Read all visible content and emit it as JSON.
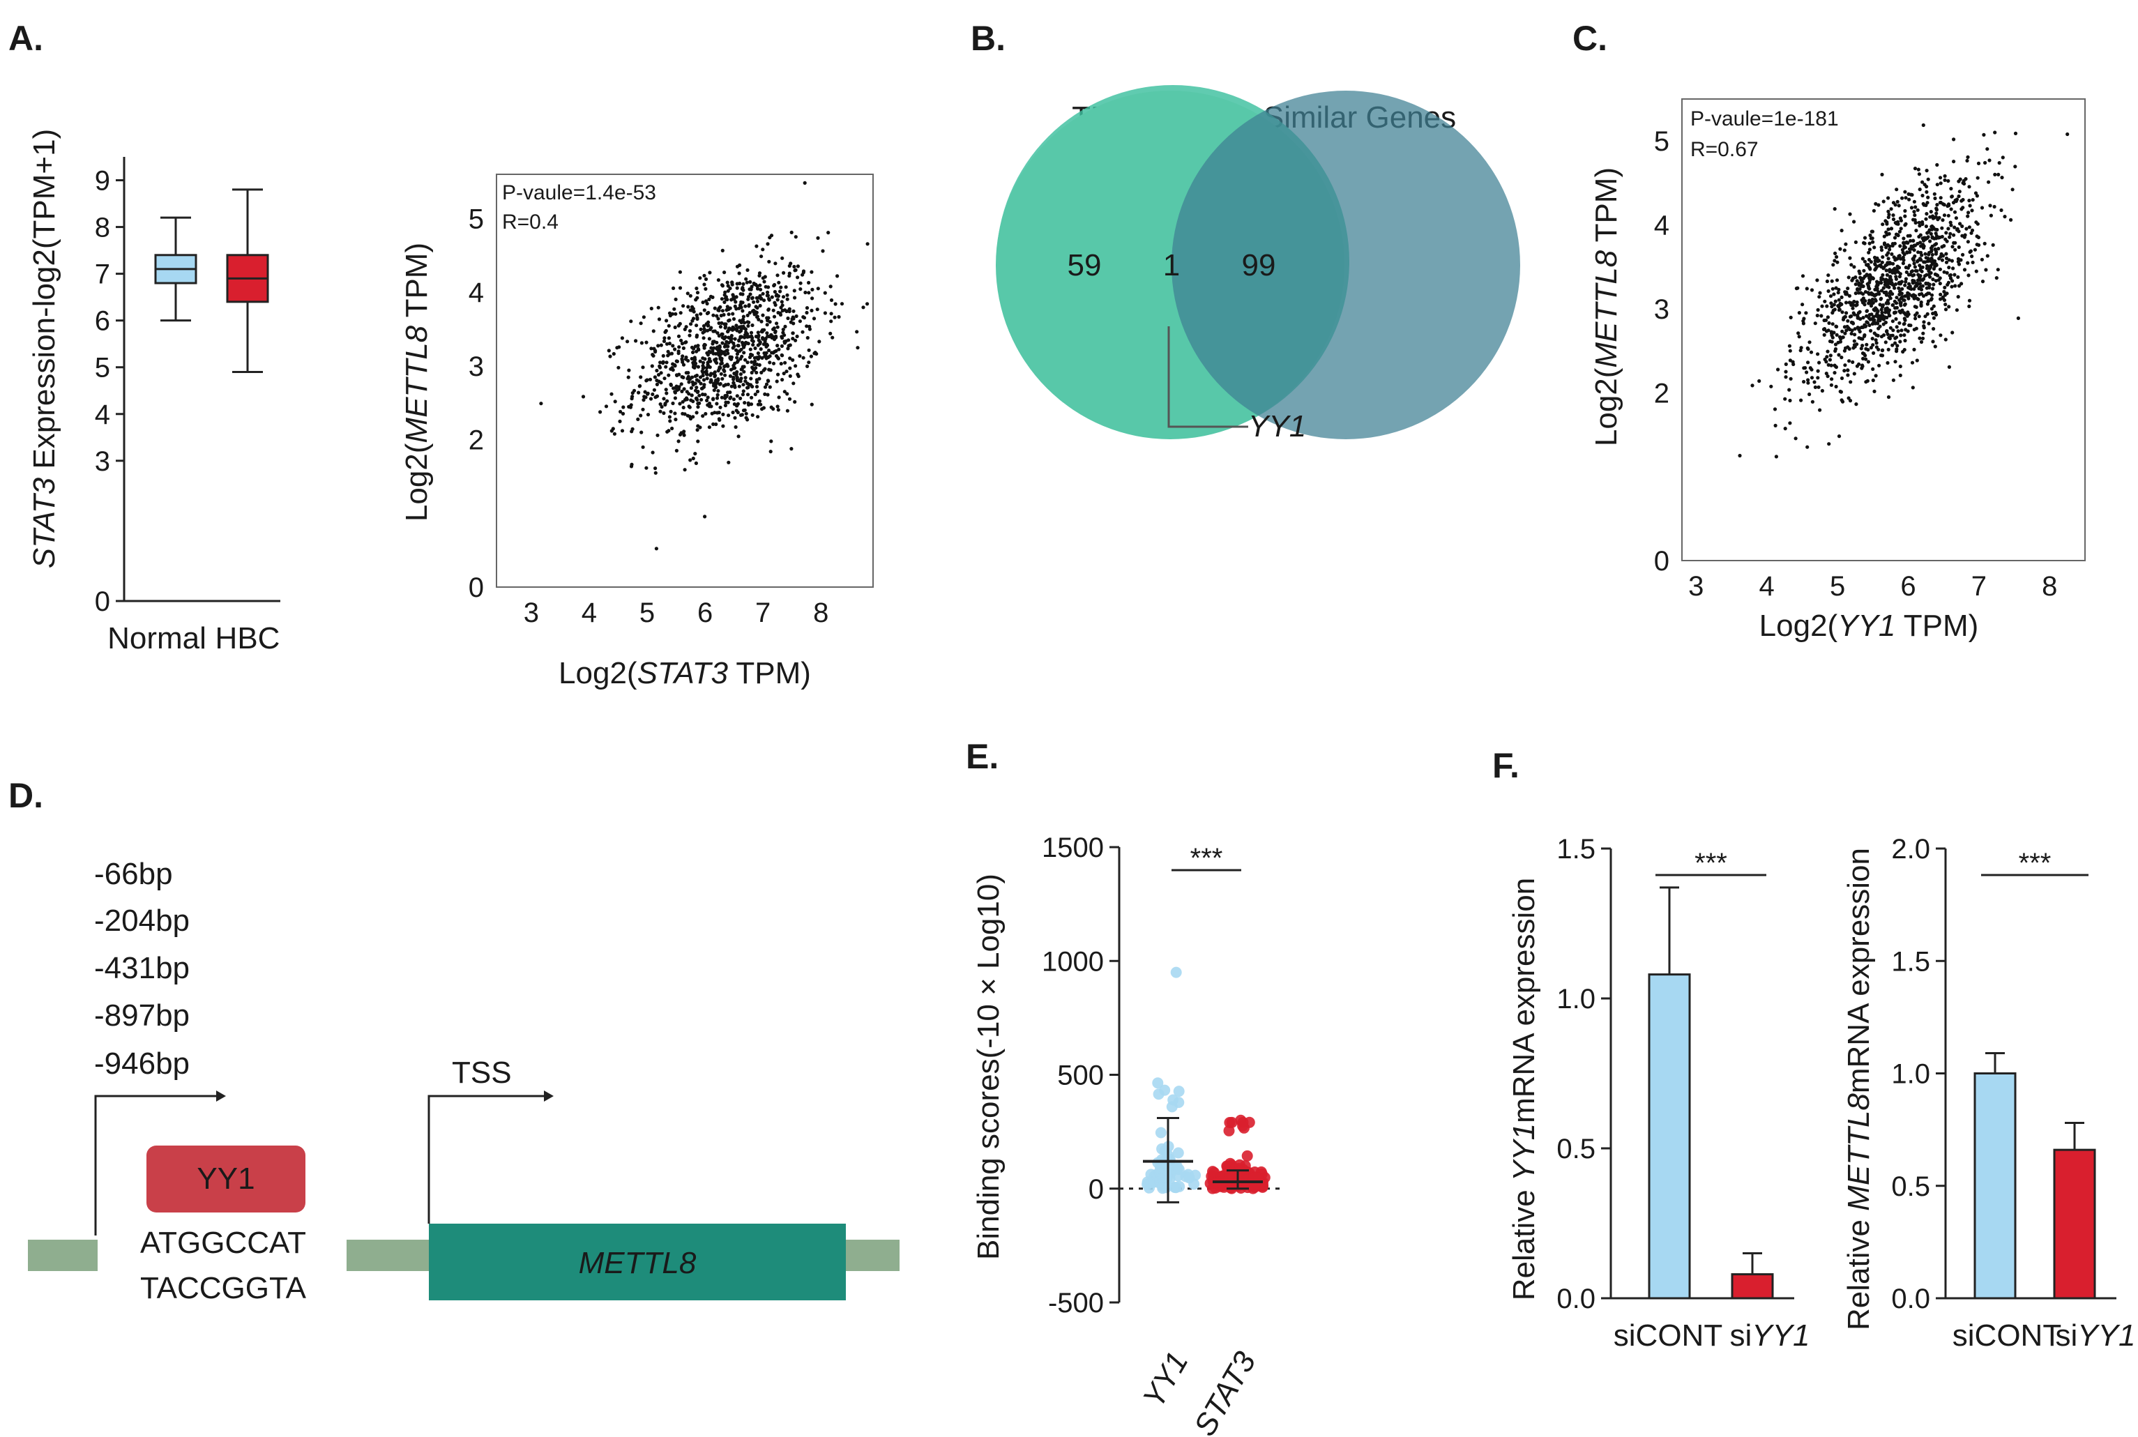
{
  "panels": {
    "A": "A.",
    "B": "B.",
    "C": "C.",
    "D": "D.",
    "E": "E.",
    "F": "F."
  },
  "colors": {
    "light_blue": "#a7d8f2",
    "red": "#d91f2e",
    "teal_circle": "#3dbf9f",
    "slate_circle": "#3f7f93",
    "gene_bar": "#1e8c7a",
    "track": "#8fae8f",
    "yy1_box": "#c94049"
  },
  "chart_data": [
    {
      "id": "A-box",
      "type": "box",
      "ylabel_gene": "STAT3",
      "ylabel_rest": " Expression-log2(TPM+1)",
      "categories": [
        "Normal",
        "HBC"
      ],
      "yticks": [
        "0",
        "3",
        "4",
        "5",
        "6",
        "7",
        "8",
        "9"
      ],
      "ylim": [
        0,
        9.5
      ],
      "boxes": [
        {
          "category": "Normal",
          "min": 6.0,
          "q1": 6.8,
          "median": 7.1,
          "q3": 7.4,
          "max": 8.2,
          "color": "#a7d8f2"
        },
        {
          "category": "HBC",
          "min": 4.9,
          "q1": 6.4,
          "median": 6.9,
          "q3": 7.4,
          "max": 8.8,
          "color": "#d91f2e"
        }
      ]
    },
    {
      "id": "A-scatter",
      "type": "scatter",
      "xlabel_pre": "Log2(",
      "xlabel_gene": "STAT3",
      "xlabel_post": " TPM)",
      "ylabel_pre": "Log2(",
      "ylabel_gene": "METTL8",
      "ylabel_post": " TPM)",
      "annotation_p": "P-vaule=1.4e-53",
      "annotation_r": "R=0.4",
      "xlim": [
        2.4,
        8.9
      ],
      "ylim": [
        0,
        5.6
      ],
      "xticks": [
        "3",
        "4",
        "5",
        "6",
        "7",
        "8"
      ],
      "yticks": [
        "0",
        "2",
        "3",
        "4",
        "5"
      ],
      "x_center": 6.4,
      "x_sd": 0.8,
      "y_center": 3.2,
      "y_sd": 0.6,
      "r": 0.4,
      "n": 1100
    },
    {
      "id": "B-venn",
      "type": "venn",
      "set1_label": "TFs",
      "set2_label": "Similar Genes",
      "set1_only": "59",
      "overlap": "1",
      "set2_only": "99",
      "overlap_gene": "YY1"
    },
    {
      "id": "C-scatter",
      "type": "scatter",
      "xlabel_pre": "Log2(",
      "xlabel_gene": "YY1",
      "xlabel_post": " TPM)",
      "ylabel_pre": "Log2(",
      "ylabel_gene": "METTL8",
      "ylabel_post": " TPM)",
      "annotation_p": "P-vaule=1e-181",
      "annotation_r": "R=0.67",
      "xlim": [
        2.8,
        8.5
      ],
      "ylim": [
        0,
        5.5
      ],
      "xticks": [
        "3",
        "4",
        "5",
        "6",
        "7",
        "8"
      ],
      "yticks": [
        "0",
        "2",
        "3",
        "4",
        "5"
      ],
      "x_center": 5.8,
      "x_sd": 0.65,
      "y_center": 3.3,
      "y_sd": 0.62,
      "r": 0.67,
      "n": 1200
    },
    {
      "id": "E-dot",
      "type": "scatter",
      "ylabel": "Binding scores(-10 × Log10)",
      "categories": [
        "YY1",
        "STAT3"
      ],
      "yticks": [
        "-500",
        "0",
        "500",
        "1000",
        "1500"
      ],
      "ylim": [
        -500,
        1500
      ],
      "significance": "***",
      "groups": [
        {
          "name": "YY1",
          "mean": 120,
          "sd_low": -60,
          "sd_high": 310,
          "max": 950,
          "color": "#a7d8f2"
        },
        {
          "name": "STAT3",
          "mean": 30,
          "sd_low": 0,
          "sd_high": 80,
          "max": 300,
          "color": "#d91f2e"
        }
      ]
    },
    {
      "id": "F-left",
      "type": "bar",
      "ylabel_pre": "Relative ",
      "ylabel_gene": "YY1",
      "ylabel_post": "mRNA expression",
      "categories": [
        "siCONT",
        "siYY1"
      ],
      "cat_labels": [
        {
          "pre": "siCONT",
          "gene": ""
        },
        {
          "pre": "si",
          "gene": "YY1"
        }
      ],
      "values": [
        1.08,
        0.08
      ],
      "errors": [
        0.29,
        0.07
      ],
      "yticks": [
        "0.0",
        "0.5",
        "1.0",
        "1.5"
      ],
      "ylim": [
        0,
        1.5
      ],
      "significance": "***"
    },
    {
      "id": "F-right",
      "type": "bar",
      "ylabel_pre": "Relative ",
      "ylabel_gene": "METTL8",
      "ylabel_post": "mRNA expression",
      "categories": [
        "siCONT",
        "siYY1"
      ],
      "cat_labels": [
        {
          "pre": "siCONT",
          "gene": ""
        },
        {
          "pre": "si",
          "gene": "YY1"
        }
      ],
      "values": [
        1.0,
        0.66
      ],
      "errors": [
        0.09,
        0.12
      ],
      "yticks": [
        "0.0",
        "0.5",
        "1.0",
        "1.5",
        "2.0"
      ],
      "ylim": [
        0,
        2.0
      ],
      "significance": "***"
    }
  ],
  "diagram_d": {
    "positions": [
      "-66bp",
      "-204bp",
      "-431bp",
      "-897bp",
      "-946bp"
    ],
    "tf_box": "YY1",
    "seq_top": "ATGGCCAT",
    "seq_bottom": "TACCGGTA",
    "tss": "TSS",
    "gene": "METTL8"
  }
}
